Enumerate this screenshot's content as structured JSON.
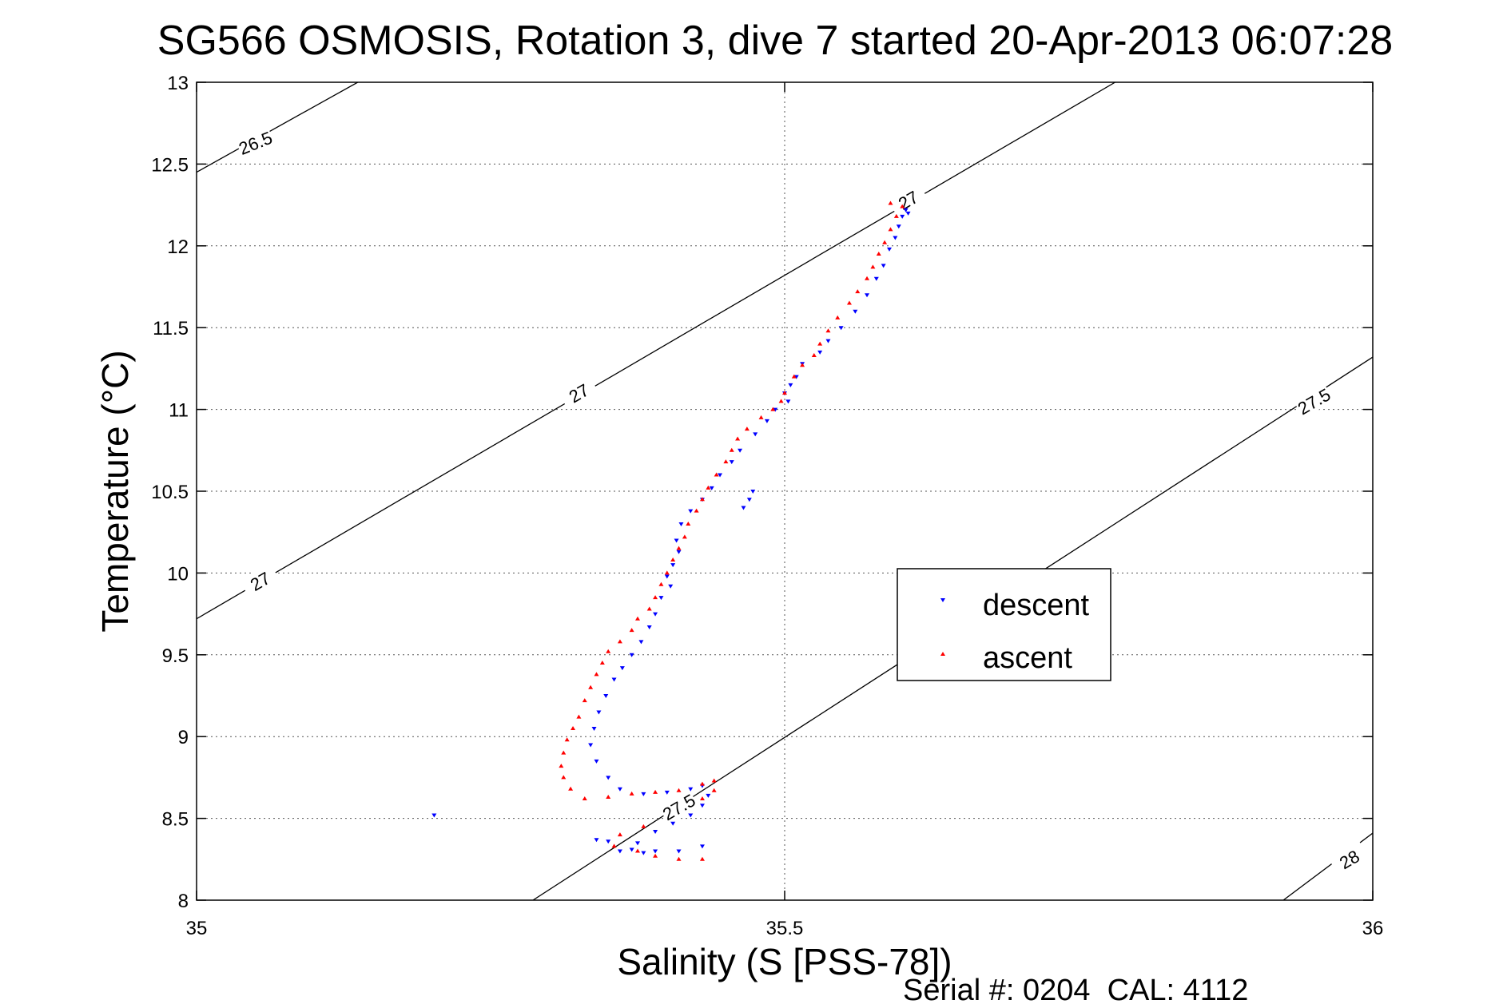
{
  "chart_data": {
    "type": "scatter",
    "title": "SG566 OSMOSIS, Rotation 3, dive 7 started 20-Apr-2013 06:07:28",
    "xlabel": "Salinity (S [PSS-78])",
    "ylabel": "Temperature (°C)",
    "footer": "Serial #: 0204  CAL: 4112",
    "xlim": [
      35,
      36
    ],
    "ylim": [
      8,
      13
    ],
    "xticks": [
      "35",
      "35.5",
      "36"
    ],
    "yticks": [
      "8",
      "8.5",
      "9",
      "9.5",
      "10",
      "10.5",
      "11",
      "11.5",
      "12",
      "12.5",
      "13"
    ],
    "grid": true,
    "legend_position": "right",
    "colors": {
      "descent": "#0000ff",
      "ascent": "#ff0000",
      "contour": "#000000"
    },
    "contours": [
      {
        "label": "26.5",
        "points": [
          [
            35.0,
            12.45
          ],
          [
            35.137,
            13.0
          ]
        ]
      },
      {
        "label": "27",
        "points": [
          [
            35.0,
            9.72
          ],
          [
            35.781,
            13.0
          ]
        ]
      },
      {
        "label": "27.5",
        "points": [
          [
            35.286,
            8.0
          ],
          [
            36.0,
            11.32
          ]
        ]
      },
      {
        "label": "28",
        "points": [
          [
            35.924,
            8.0
          ],
          [
            36.0,
            8.41
          ]
        ]
      }
    ],
    "contour_labels": [
      {
        "text": "26.5",
        "x": 35.05,
        "y": 12.63,
        "angle": -22
      },
      {
        "text": "27",
        "x": 35.325,
        "y": 11.1,
        "angle": -30
      },
      {
        "text": "27",
        "x": 35.054,
        "y": 9.95,
        "angle": -30
      },
      {
        "text": "27",
        "x": 35.605,
        "y": 12.28,
        "angle": -30
      },
      {
        "text": "27.5",
        "x": 35.95,
        "y": 11.05,
        "angle": -30
      },
      {
        "text": "27.5",
        "x": 35.41,
        "y": 8.57,
        "angle": -30
      },
      {
        "text": "28",
        "x": 35.98,
        "y": 8.25,
        "angle": -30
      }
    ],
    "series": [
      {
        "name": "descent",
        "marker": "triangle-down",
        "points": [
          [
            35.603,
            12.22
          ],
          [
            35.605,
            12.2
          ],
          [
            35.6,
            12.18
          ],
          [
            35.597,
            12.12
          ],
          [
            35.594,
            12.05
          ],
          [
            35.589,
            11.98
          ],
          [
            35.584,
            11.88
          ],
          [
            35.578,
            11.8
          ],
          [
            35.57,
            11.7
          ],
          [
            35.56,
            11.6
          ],
          [
            35.548,
            11.5
          ],
          [
            35.537,
            11.42
          ],
          [
            35.53,
            11.35
          ],
          [
            35.515,
            11.28
          ],
          [
            35.51,
            11.2
          ],
          [
            35.505,
            11.15
          ],
          [
            35.5,
            11.1
          ],
          [
            35.503,
            11.05
          ],
          [
            35.492,
            11.0
          ],
          [
            35.485,
            10.93
          ],
          [
            35.475,
            10.85
          ],
          [
            35.462,
            10.75
          ],
          [
            35.455,
            10.68
          ],
          [
            35.445,
            10.6
          ],
          [
            35.438,
            10.52
          ],
          [
            35.43,
            10.45
          ],
          [
            35.42,
            10.38
          ],
          [
            35.412,
            10.3
          ],
          [
            35.408,
            10.2
          ],
          [
            35.41,
            10.13
          ],
          [
            35.405,
            10.05
          ],
          [
            35.4,
            9.98
          ],
          [
            35.403,
            9.92
          ],
          [
            35.395,
            9.85
          ],
          [
            35.39,
            9.75
          ],
          [
            35.385,
            9.67
          ],
          [
            35.378,
            9.58
          ],
          [
            35.37,
            9.5
          ],
          [
            35.362,
            9.42
          ],
          [
            35.355,
            9.35
          ],
          [
            35.348,
            9.25
          ],
          [
            35.342,
            9.15
          ],
          [
            35.338,
            9.05
          ],
          [
            35.335,
            8.95
          ],
          [
            35.34,
            8.85
          ],
          [
            35.35,
            8.75
          ],
          [
            35.36,
            8.68
          ],
          [
            35.38,
            8.65
          ],
          [
            35.4,
            8.66
          ],
          [
            35.42,
            8.68
          ],
          [
            35.43,
            8.7
          ],
          [
            35.435,
            8.64
          ],
          [
            35.43,
            8.58
          ],
          [
            35.42,
            8.52
          ],
          [
            35.405,
            8.47
          ],
          [
            35.39,
            8.42
          ],
          [
            35.375,
            8.35
          ],
          [
            35.37,
            8.31
          ],
          [
            35.38,
            8.29
          ],
          [
            35.473,
            10.5
          ],
          [
            35.47,
            10.45
          ],
          [
            35.465,
            10.4
          ],
          [
            35.202,
            8.52
          ],
          [
            35.34,
            8.37
          ],
          [
            35.35,
            8.36
          ],
          [
            35.36,
            8.3
          ],
          [
            35.39,
            8.3
          ],
          [
            35.41,
            8.3
          ],
          [
            35.43,
            8.33
          ]
        ]
      },
      {
        "name": "ascent",
        "marker": "triangle-up",
        "points": [
          [
            35.59,
            12.26
          ],
          [
            35.6,
            12.24
          ],
          [
            35.595,
            12.18
          ],
          [
            35.59,
            12.1
          ],
          [
            35.585,
            12.02
          ],
          [
            35.58,
            11.95
          ],
          [
            35.575,
            11.87
          ],
          [
            35.57,
            11.8
          ],
          [
            35.562,
            11.72
          ],
          [
            35.555,
            11.65
          ],
          [
            35.545,
            11.56
          ],
          [
            35.537,
            11.48
          ],
          [
            35.53,
            11.4
          ],
          [
            35.525,
            11.33
          ],
          [
            35.515,
            11.27
          ],
          [
            35.508,
            11.2
          ],
          [
            35.5,
            11.1
          ],
          [
            35.497,
            11.05
          ],
          [
            35.49,
            11.0
          ],
          [
            35.48,
            10.95
          ],
          [
            35.468,
            10.88
          ],
          [
            35.46,
            10.82
          ],
          [
            35.455,
            10.75
          ],
          [
            35.45,
            10.68
          ],
          [
            35.442,
            10.6
          ],
          [
            35.435,
            10.52
          ],
          [
            35.43,
            10.45
          ],
          [
            35.425,
            10.38
          ],
          [
            35.418,
            10.3
          ],
          [
            35.415,
            10.22
          ],
          [
            35.41,
            10.15
          ],
          [
            35.405,
            10.08
          ],
          [
            35.4,
            10.0
          ],
          [
            35.395,
            9.93
          ],
          [
            35.39,
            9.85
          ],
          [
            35.385,
            9.78
          ],
          [
            35.375,
            9.72
          ],
          [
            35.37,
            9.65
          ],
          [
            35.36,
            9.58
          ],
          [
            35.35,
            9.52
          ],
          [
            35.345,
            9.45
          ],
          [
            35.34,
            9.38
          ],
          [
            35.335,
            9.3
          ],
          [
            35.33,
            9.22
          ],
          [
            35.325,
            9.12
          ],
          [
            35.32,
            9.05
          ],
          [
            35.315,
            8.98
          ],
          [
            35.312,
            8.9
          ],
          [
            35.31,
            8.82
          ],
          [
            35.312,
            8.75
          ],
          [
            35.318,
            8.68
          ],
          [
            35.33,
            8.62
          ],
          [
            35.35,
            8.63
          ],
          [
            35.37,
            8.65
          ],
          [
            35.39,
            8.66
          ],
          [
            35.41,
            8.67
          ],
          [
            35.43,
            8.71
          ],
          [
            35.44,
            8.73
          ],
          [
            35.44,
            8.67
          ],
          [
            35.43,
            8.62
          ],
          [
            35.38,
            8.45
          ],
          [
            35.36,
            8.4
          ],
          [
            35.375,
            8.3
          ],
          [
            35.39,
            8.27
          ],
          [
            35.41,
            8.25
          ],
          [
            35.43,
            8.25
          ],
          [
            35.355,
            8.33
          ]
        ]
      }
    ]
  }
}
